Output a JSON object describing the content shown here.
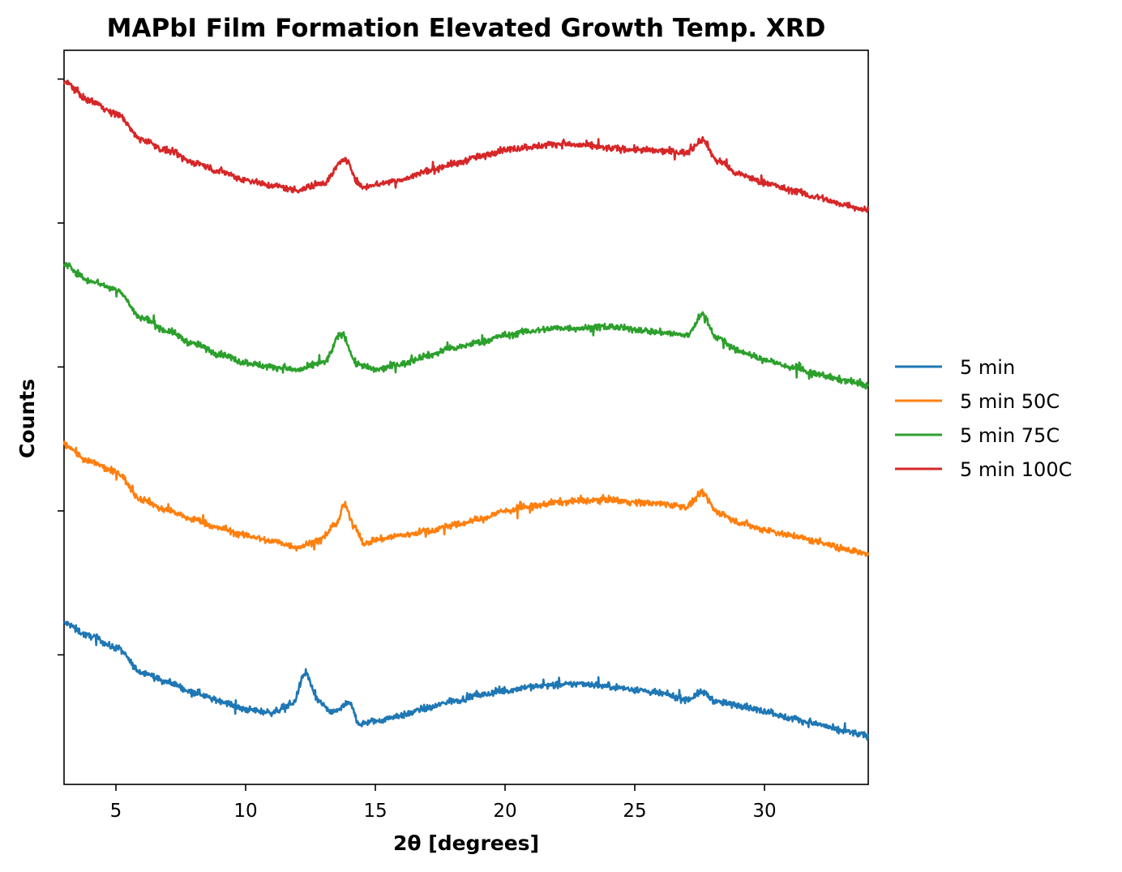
{
  "chart_data": {
    "type": "line",
    "title": "MAPbI Film Formation Elevated Growth Temp. XRD",
    "xlabel": "2θ [degrees]",
    "ylabel": "Counts",
    "xlim": [
      3,
      34
    ],
    "ylim": [
      0,
      5.1
    ],
    "xticks": [
      5,
      10,
      15,
      20,
      25,
      30
    ],
    "yticks": [
      0.9,
      1.9,
      2.9,
      3.9,
      4.9
    ],
    "ytick_labels_shown": false,
    "grid": false,
    "legend_position": "right-center",
    "series": [
      {
        "name": "5 min",
        "color": "#1f77b4",
        "x": [
          3,
          4,
          5,
          6,
          7,
          8,
          9,
          10,
          11,
          11.8,
          12.3,
          12.8,
          13.3,
          14,
          14.4,
          15,
          16,
          17,
          18,
          19,
          20,
          21,
          22,
          23,
          24,
          25,
          26,
          27,
          27.6,
          28.2,
          29,
          30,
          31,
          32,
          33,
          34
        ],
        "y": [
          1.12,
          1.03,
          0.95,
          0.78,
          0.71,
          0.64,
          0.58,
          0.52,
          0.5,
          0.56,
          0.77,
          0.58,
          0.5,
          0.56,
          0.42,
          0.44,
          0.48,
          0.53,
          0.58,
          0.62,
          0.65,
          0.68,
          0.69,
          0.7,
          0.68,
          0.66,
          0.63,
          0.59,
          0.64,
          0.57,
          0.55,
          0.51,
          0.46,
          0.42,
          0.37,
          0.34
        ]
      },
      {
        "name": "5 min 50C",
        "color": "#ff7f0e",
        "x": [
          3,
          4,
          5,
          6,
          7,
          8,
          9,
          10,
          11,
          12,
          12.8,
          13.5,
          13.8,
          14.2,
          14.6,
          15,
          16,
          17,
          18,
          19,
          20,
          21,
          22,
          23,
          24,
          25,
          26,
          27,
          27.6,
          28.2,
          29,
          30,
          31,
          32,
          33,
          34
        ],
        "y": [
          2.36,
          2.24,
          2.17,
          1.98,
          1.9,
          1.84,
          1.78,
          1.73,
          1.69,
          1.65,
          1.69,
          1.81,
          1.94,
          1.79,
          1.67,
          1.7,
          1.73,
          1.76,
          1.8,
          1.84,
          1.9,
          1.93,
          1.96,
          1.97,
          1.98,
          1.96,
          1.95,
          1.93,
          2.02,
          1.89,
          1.82,
          1.77,
          1.73,
          1.69,
          1.64,
          1.6
        ]
      },
      {
        "name": "5 min 75C",
        "color": "#2ca02c",
        "x": [
          3,
          4,
          5,
          6,
          7,
          8,
          9,
          10,
          11,
          12,
          13,
          13.7,
          14.3,
          15,
          16,
          17,
          18,
          19,
          20,
          21,
          22,
          23,
          24,
          25,
          26,
          27,
          27.6,
          28.2,
          29,
          30,
          31,
          32,
          33,
          34
        ],
        "y": [
          3.61,
          3.5,
          3.44,
          3.24,
          3.15,
          3.06,
          2.99,
          2.93,
          2.9,
          2.88,
          2.93,
          3.13,
          2.92,
          2.88,
          2.92,
          2.98,
          3.03,
          3.07,
          3.12,
          3.15,
          3.17,
          3.17,
          3.18,
          3.16,
          3.14,
          3.12,
          3.26,
          3.1,
          3.01,
          2.95,
          2.9,
          2.85,
          2.81,
          2.77
        ]
      },
      {
        "name": "5 min 100C",
        "color": "#d62728",
        "x": [
          3,
          4,
          5,
          6,
          7,
          8,
          9,
          10,
          11,
          12,
          13,
          13.8,
          14.5,
          15,
          16,
          17,
          18,
          19,
          20,
          21,
          22,
          23,
          24,
          25,
          26,
          27,
          27.6,
          28.2,
          29,
          30,
          31,
          32,
          33,
          34
        ],
        "y": [
          4.88,
          4.75,
          4.66,
          4.48,
          4.4,
          4.32,
          4.26,
          4.2,
          4.16,
          4.13,
          4.18,
          4.34,
          4.15,
          4.17,
          4.2,
          4.26,
          4.31,
          4.36,
          4.41,
          4.43,
          4.45,
          4.44,
          4.42,
          4.41,
          4.4,
          4.39,
          4.48,
          4.33,
          4.24,
          4.18,
          4.13,
          4.08,
          4.03,
          3.99
        ]
      }
    ]
  }
}
